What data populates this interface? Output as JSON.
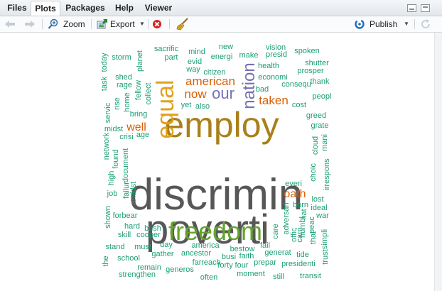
{
  "tabs": [
    {
      "label": "Files",
      "active": false
    },
    {
      "label": "Plots",
      "active": true
    },
    {
      "label": "Packages",
      "active": false
    },
    {
      "label": "Help",
      "active": false
    },
    {
      "label": "Viewer",
      "active": false
    }
  ],
  "toolbar": {
    "zoom_label": "Zoom",
    "export_label": "Export",
    "publish_label": "Publish"
  },
  "icons": {
    "back": "arrow-left-icon",
    "forward": "arrow-right-icon",
    "zoom": "magnifier-plus-icon",
    "export": "export-image-icon",
    "remove": "remove-plot-icon",
    "clear": "broom-icon",
    "publish": "publish-icon",
    "refresh": "refresh-icon"
  },
  "colors": {
    "accent_blue": "#1f6fb8",
    "remove_red": "#d62020"
  },
  "word_cloud": {
    "words": [
      {
        "text": "discrimin",
        "color": "#575757"
      },
      {
        "text": "poverti",
        "color": "#575757"
      },
      {
        "text": "employ",
        "color": "#a9801a"
      },
      {
        "text": "freedom",
        "color": "#63a52b"
      },
      {
        "text": "equal",
        "color": "#e0a21f"
      },
      {
        "text": "nation",
        "color": "#7570b3"
      },
      {
        "text": "our",
        "color": "#7570b3"
      },
      {
        "text": "american",
        "color": "#d95f02"
      },
      {
        "text": "now",
        "color": "#d95f02"
      },
      {
        "text": "taken",
        "color": "#d95f02"
      },
      {
        "text": "oath",
        "color": "#d95f02"
      },
      {
        "text": "well",
        "color": "#d95f02"
      },
      {
        "text": "sacrific",
        "color": "#1b9e77"
      },
      {
        "text": "new",
        "color": "#1b9e77"
      },
      {
        "text": "vision",
        "color": "#1b9e77"
      },
      {
        "text": "spoken",
        "color": "#1b9e77"
      },
      {
        "text": "part",
        "color": "#1b9e77"
      },
      {
        "text": "mind",
        "color": "#1b9e77"
      },
      {
        "text": "energi",
        "color": "#1b9e77"
      },
      {
        "text": "make",
        "color": "#1b9e77"
      },
      {
        "text": "presid",
        "color": "#1b9e77"
      },
      {
        "text": "shutter",
        "color": "#1b9e77"
      },
      {
        "text": "storm",
        "color": "#1b9e77"
      },
      {
        "text": "today",
        "color": "#1b9e77"
      },
      {
        "text": "planet",
        "color": "#1b9e77"
      },
      {
        "text": "evid",
        "color": "#1b9e77"
      },
      {
        "text": "health",
        "color": "#1b9e77"
      },
      {
        "text": "prosper",
        "color": "#1b9e77"
      },
      {
        "text": "shed",
        "color": "#1b9e77"
      },
      {
        "text": "way",
        "color": "#1b9e77"
      },
      {
        "text": "citizen",
        "color": "#1b9e77"
      },
      {
        "text": "economi",
        "color": "#1b9e77"
      },
      {
        "text": "thank",
        "color": "#1b9e77"
      },
      {
        "text": "task",
        "color": "#1b9e77"
      },
      {
        "text": "rage",
        "color": "#1b9e77"
      },
      {
        "text": "fellow",
        "color": "#1b9e77"
      },
      {
        "text": "bad",
        "color": "#1b9e77"
      },
      {
        "text": "consequ",
        "color": "#1b9e77"
      },
      {
        "text": "rise",
        "color": "#1b9e77"
      },
      {
        "text": "home",
        "color": "#1b9e77"
      },
      {
        "text": "collect",
        "color": "#1b9e77"
      },
      {
        "text": "peopl",
        "color": "#1b9e77"
      },
      {
        "text": "servic",
        "color": "#1b9e77"
      },
      {
        "text": "bring",
        "color": "#1b9e77"
      },
      {
        "text": "yet",
        "color": "#1b9e77"
      },
      {
        "text": "also",
        "color": "#1b9e77"
      },
      {
        "text": "cost",
        "color": "#1b9e77"
      },
      {
        "text": "greed",
        "color": "#1b9e77"
      },
      {
        "text": "midst",
        "color": "#1b9e77"
      },
      {
        "text": "age",
        "color": "#1b9e77"
      },
      {
        "text": "grate",
        "color": "#1b9e77"
      },
      {
        "text": "network",
        "color": "#1b9e77"
      },
      {
        "text": "crisi",
        "color": "#1b9e77"
      },
      {
        "text": "mani",
        "color": "#1b9e77"
      },
      {
        "text": "document",
        "color": "#1b9e77"
      },
      {
        "text": "found",
        "color": "#1b9e77"
      },
      {
        "text": "cloud",
        "color": "#1b9e77"
      },
      {
        "text": "high",
        "color": "#1b9e77"
      },
      {
        "text": "choic",
        "color": "#1b9e77"
      },
      {
        "text": "irrespons",
        "color": "#1b9e77"
      },
      {
        "text": "job",
        "color": "#1b9e77"
      },
      {
        "text": "failur",
        "color": "#1b9e77"
      },
      {
        "text": "amidst",
        "color": "#1b9e77"
      },
      {
        "text": "everi",
        "color": "#1b9e77"
      },
      {
        "text": "lost",
        "color": "#1b9e77"
      },
      {
        "text": "born",
        "color": "#1b9e77"
      },
      {
        "text": "ideal",
        "color": "#1b9e77"
      },
      {
        "text": "shown",
        "color": "#1b9e77"
      },
      {
        "text": "forbear",
        "color": "#1b9e77"
      },
      {
        "text": "adversari",
        "color": "#1b9e77"
      },
      {
        "text": "hat",
        "color": "#1b9e77"
      },
      {
        "text": "war",
        "color": "#1b9e77"
      },
      {
        "text": "hard",
        "color": "#1b9e77"
      },
      {
        "text": "bush",
        "color": "#1b9e77"
      },
      {
        "text": "humbl",
        "color": "#1b9e77"
      },
      {
        "text": "peac",
        "color": "#1b9e77"
      },
      {
        "text": "skill",
        "color": "#1b9e77"
      },
      {
        "text": "cooper",
        "color": "#1b9e77"
      },
      {
        "text": "care",
        "color": "#1b9e77"
      },
      {
        "text": "offic",
        "color": "#1b9e77"
      },
      {
        "text": "carri",
        "color": "#1b9e77"
      },
      {
        "text": "that",
        "color": "#1b9e77"
      },
      {
        "text": "stand",
        "color": "#1b9e77"
      },
      {
        "text": "must",
        "color": "#1b9e77"
      },
      {
        "text": "day",
        "color": "#1b9e77"
      },
      {
        "text": "america",
        "color": "#1b9e77"
      },
      {
        "text": "bestow",
        "color": "#1b9e77"
      },
      {
        "text": "fail",
        "color": "#1b9e77"
      },
      {
        "text": "trust",
        "color": "#1b9e77"
      },
      {
        "text": "simpli",
        "color": "#1b9e77"
      },
      {
        "text": "the",
        "color": "#1b9e77"
      },
      {
        "text": "school",
        "color": "#1b9e77"
      },
      {
        "text": "gather",
        "color": "#1b9e77"
      },
      {
        "text": "ancestor",
        "color": "#1b9e77"
      },
      {
        "text": "busi",
        "color": "#1b9e77"
      },
      {
        "text": "faith",
        "color": "#1b9e77"
      },
      {
        "text": "generat",
        "color": "#1b9e77"
      },
      {
        "text": "tide",
        "color": "#1b9e77"
      },
      {
        "text": "remain",
        "color": "#1b9e77"
      },
      {
        "text": "far",
        "color": "#1b9e77"
      },
      {
        "text": "reach",
        "color": "#1b9e77"
      },
      {
        "text": "forty",
        "color": "#1b9e77"
      },
      {
        "text": "four",
        "color": "#1b9e77"
      },
      {
        "text": "prepar",
        "color": "#1b9e77"
      },
      {
        "text": "presidenti",
        "color": "#1b9e77"
      },
      {
        "text": "strengthen",
        "color": "#1b9e77"
      },
      {
        "text": "generos",
        "color": "#1b9e77"
      },
      {
        "text": "often",
        "color": "#1b9e77"
      },
      {
        "text": "moment",
        "color": "#1b9e77"
      },
      {
        "text": "still",
        "color": "#1b9e77"
      },
      {
        "text": "transit",
        "color": "#1b9e77"
      }
    ]
  }
}
